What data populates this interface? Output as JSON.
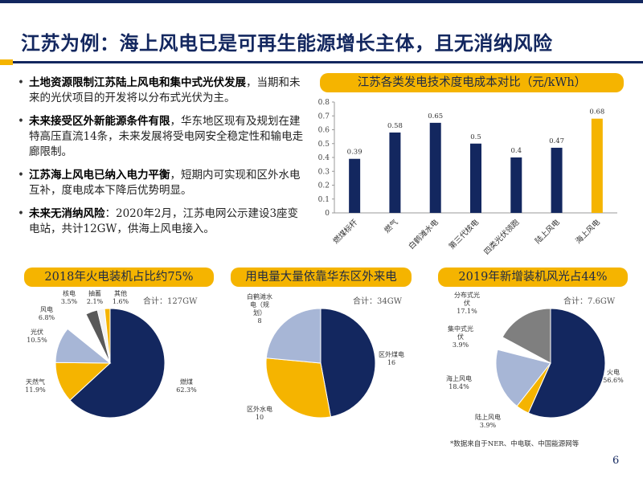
{
  "title": "江苏为例：海上风电已是可再生能源增长主体，且无消纳风险",
  "bullets": [
    {
      "bold": "土地资源限制江苏陆上风电和集中式光伏发展",
      "text": "，当期和未来的光伏项目的开发将以分布式光伏为主。"
    },
    {
      "bold": "未来接受区外新能源条件有限",
      "text": "，华东地区现有及规划在建特高压直流14条，未来发展将受电网安全稳定性和输电走廊限制。"
    },
    {
      "bold": "江苏海上风电已纳入电力平衡",
      "text": "，短期内可实现和区外水电互补，度电成本下降后优势明显。"
    },
    {
      "bold": "未来无消纳风险",
      "text": "：2020年2月，江苏电网公示建设3座变电站，共计12GW，供海上风电接入。"
    }
  ],
  "colors": {
    "navy": "#13275f",
    "gold": "#f5b400",
    "lightblue": "#a7b6d6",
    "gray": "#7f7f7f",
    "darkgray": "#595959",
    "white": "#ffffff"
  },
  "chart_data": [
    {
      "type": "bar",
      "title": "江苏各类发电技术度电成本对比（元/kWh）",
      "categories": [
        "燃煤标杆",
        "燃气",
        "白鹤滩水电",
        "第三代核电",
        "四类光伏领跑",
        "陆上风电",
        "海上风电"
      ],
      "values": [
        0.39,
        0.58,
        0.65,
        0.5,
        0.4,
        0.47,
        0.68
      ],
      "data_labels": [
        "0.39",
        "0.58",
        "0.65",
        "0.5",
        "0.4",
        "0.47",
        "0.68"
      ],
      "bar_colors": [
        "#13275f",
        "#13275f",
        "#13275f",
        "#13275f",
        "#13275f",
        "#13275f",
        "#f5b400"
      ],
      "yticks": [
        "0",
        "0.1",
        "0.2",
        "0.3",
        "0.4",
        "0.5",
        "0.6",
        "0.7",
        "0.8"
      ],
      "ylim": [
        0,
        0.8
      ],
      "grid": false
    },
    {
      "type": "pie",
      "title": "2018年火电装机占比约75%",
      "total": "合计：127GW",
      "slices": [
        {
          "label": "燃煤",
          "pct": "62.3%",
          "value": 62.3,
          "color": "#13275f"
        },
        {
          "label": "天然气",
          "pct": "11.9%",
          "value": 11.9,
          "color": "#f5b400"
        },
        {
          "label": "光伏",
          "pct": "10.5%",
          "value": 10.5,
          "color": "#a7b6d6"
        },
        {
          "label": "风电",
          "pct": "6.8%",
          "value": 6.8,
          "color": "#ffffff"
        },
        {
          "label": "核电",
          "pct": "3.5%",
          "value": 3.5,
          "color": "#595959"
        },
        {
          "label": "抽蓄",
          "pct": "2.1%",
          "value": 2.1,
          "color": "#f2f2f2"
        },
        {
          "label": "其他",
          "pct": "1.6%",
          "value": 1.6,
          "color": "#f5b400"
        }
      ]
    },
    {
      "type": "pie",
      "title": "用电量大量依靠华东区外来电",
      "total": "合计：34GW",
      "slices": [
        {
          "label": "区外煤电",
          "pct": "16",
          "value": 16,
          "color": "#13275f"
        },
        {
          "label": "区外水电",
          "pct": "10",
          "value": 10,
          "color": "#f5b400"
        },
        {
          "label": "白鹤滩水电（规划）",
          "pct": "8",
          "value": 8,
          "color": "#a7b6d6"
        }
      ]
    },
    {
      "type": "pie",
      "title": "2019年新增装机风光占44%",
      "total": "合计：7.6GW",
      "slices": [
        {
          "label": "火电",
          "pct": "56.6%",
          "value": 56.6,
          "color": "#13275f"
        },
        {
          "label": "陆上风电",
          "pct": "3.9%",
          "value": 3.9,
          "color": "#f5b400"
        },
        {
          "label": "海上风电",
          "pct": "18.4%",
          "value": 18.4,
          "color": "#a7b6d6"
        },
        {
          "label": "集中式光伏",
          "pct": "3.9%",
          "value": 3.9,
          "color": "#ffffff"
        },
        {
          "label": "分布式光伏",
          "pct": "17.1%",
          "value": 17.1,
          "color": "#7f7f7f"
        }
      ]
    }
  ],
  "footnote": "*数据来自于NER、中电联、中国能源网等",
  "page_number": "6"
}
